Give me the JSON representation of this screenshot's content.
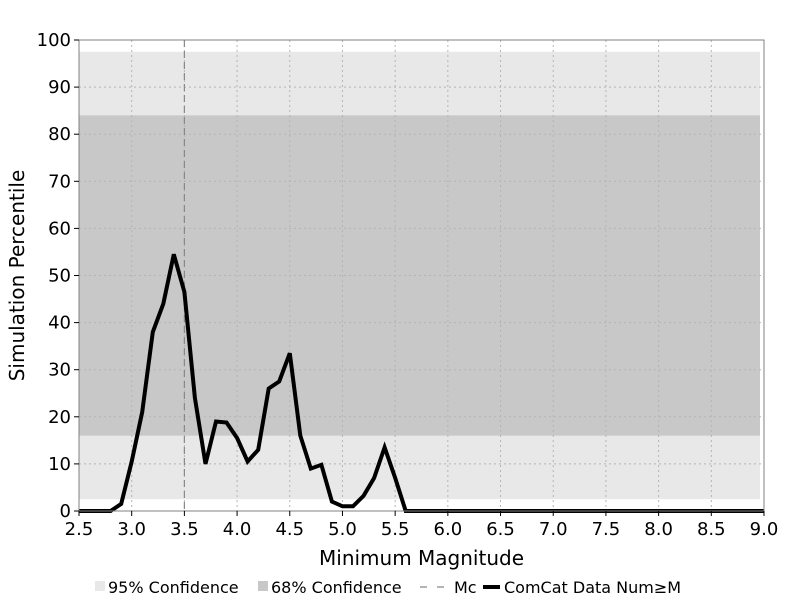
{
  "chart_data": {
    "type": "line",
    "title": "",
    "xlabel": "Minimum Magnitude",
    "ylabel": "Simulation Percentile",
    "xlim": [
      2.5,
      9.0
    ],
    "ylim": [
      0,
      100
    ],
    "grid": true,
    "legend_placement": "bottom",
    "x_ticks": [
      "2.5",
      "3.0",
      "3.5",
      "4.0",
      "4.5",
      "5.0",
      "5.5",
      "6.0",
      "6.5",
      "7.0",
      "7.5",
      "8.0",
      "8.5",
      "9.0"
    ],
    "y_ticks": [
      "0",
      "10",
      "20",
      "30",
      "40",
      "50",
      "60",
      "70",
      "80",
      "90",
      "100"
    ],
    "bands": [
      {
        "name": "95% Confidence",
        "low": 2.5,
        "high": 97.5,
        "color": "#e8e8e8"
      },
      {
        "name": "68% Confidence",
        "low": 16,
        "high": 84,
        "color": "#c8c8c8"
      }
    ],
    "mc": {
      "name": "Mc",
      "x": 3.5,
      "color": "#888888"
    },
    "series": [
      {
        "name": "ComCat Data Num≥M",
        "color": "#000000",
        "x": [
          2.5,
          2.6,
          2.7,
          2.8,
          2.9,
          3.0,
          3.1,
          3.2,
          3.3,
          3.4,
          3.5,
          3.6,
          3.7,
          3.8,
          3.9,
          4.0,
          4.1,
          4.2,
          4.3,
          4.4,
          4.5,
          4.6,
          4.7,
          4.8,
          4.9,
          5.0,
          5.1,
          5.2,
          5.3,
          5.4,
          5.5,
          5.6,
          5.7,
          5.8,
          5.9,
          6.0,
          6.5,
          7.0,
          7.5,
          8.0,
          8.5,
          9.0
        ],
        "y": [
          0,
          0,
          0,
          0,
          1.5,
          10.5,
          21,
          38,
          44,
          54.5,
          46.5,
          24,
          10,
          19,
          18.8,
          15.5,
          10.5,
          13,
          26,
          27.5,
          33.5,
          16,
          9,
          9.8,
          2,
          1,
          1,
          3.2,
          7,
          13.5,
          7,
          0,
          0,
          0,
          0,
          0,
          0,
          0,
          0,
          0,
          0,
          0
        ]
      }
    ]
  }
}
